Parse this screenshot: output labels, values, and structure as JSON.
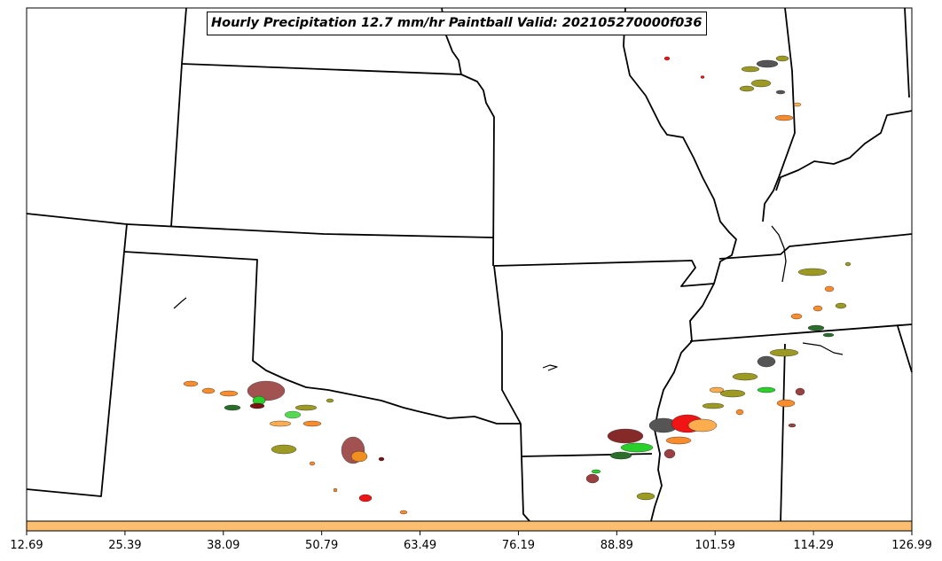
{
  "title": "Hourly Precipitation 12.7 mm/hr Paintball Valid: 202105270000f036",
  "colorbar": {
    "fill_color": "#fdbf6f",
    "ticks": [
      "12.69",
      "25.39",
      "38.09",
      "50.79",
      "63.49",
      "76.19",
      "88.89",
      "101.59",
      "114.29",
      "126.99"
    ]
  },
  "palette": {
    "brown": "#9a4040",
    "darkred": "#7a1212",
    "olive": "#9c9a22",
    "orange": "#fb8c2c",
    "lightorange": "#fdad4e",
    "green": "#2ad02a",
    "darkgreen": "#2a6e2a",
    "red": "#f01414",
    "gray": "#555555"
  }
}
